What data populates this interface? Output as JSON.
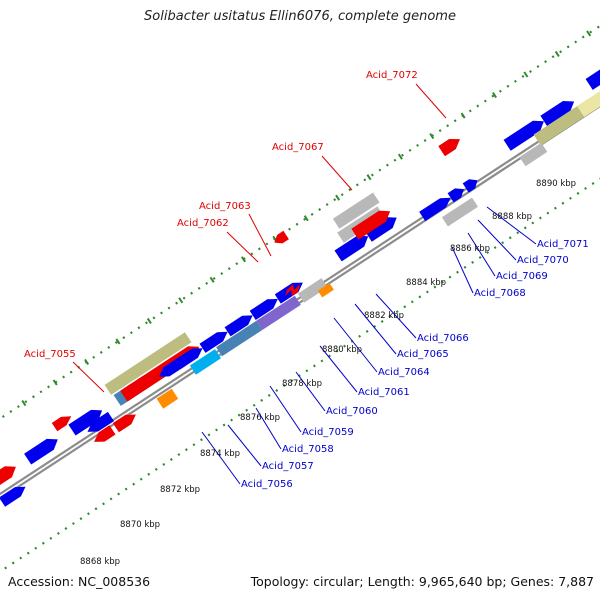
{
  "title": "Solibacter usitatus Ellin6076, complete genome",
  "footer": {
    "accession": "Accession: NC_008536",
    "info": "Topology: circular; Length: 9,965,640 bp; Genes: 7,887"
  },
  "colors": {
    "backbone": "#8c8c8c",
    "ruler_dots": "#2e8b2e",
    "forward_label": "#e00000",
    "reverse_label": "#0000cc",
    "blue_gene": "#0000ee",
    "red_gene": "#ee0000",
    "grey_gene": "#b8b8b8",
    "khaki_gene": "#bdbd80",
    "steelblue_gene": "#4682b4",
    "cyan_gene": "#00b0ee",
    "purple_gene": "#8066cc",
    "orange_gene": "#ff8c00",
    "paleyellow_gene": "#ece6a4"
  },
  "ruler_labels": [
    "8868 kbp",
    "8870 kbp",
    "8872 kbp",
    "8874 kbp",
    "8876 kbp",
    "8878 kbp",
    "8880 kbp",
    "8882 kbp",
    "8884 kbp",
    "8886 kbp",
    "8888 kbp",
    "8890 kbp"
  ],
  "gene_labels": [
    {
      "text": "Acid_7072",
      "strand": "forward"
    },
    {
      "text": "Acid_7067",
      "strand": "forward"
    },
    {
      "text": "Acid_7063",
      "strand": "forward"
    },
    {
      "text": "Acid_7062",
      "strand": "forward"
    },
    {
      "text": "Acid_7055",
      "strand": "forward"
    },
    {
      "text": "Acid_7071",
      "strand": "reverse"
    },
    {
      "text": "Acid_7070",
      "strand": "reverse"
    },
    {
      "text": "Acid_7069",
      "strand": "reverse"
    },
    {
      "text": "Acid_7068",
      "strand": "reverse"
    },
    {
      "text": "Acid_7066",
      "strand": "reverse"
    },
    {
      "text": "Acid_7065",
      "strand": "reverse"
    },
    {
      "text": "Acid_7064",
      "strand": "reverse"
    },
    {
      "text": "Acid_7061",
      "strand": "reverse"
    },
    {
      "text": "Acid_7060",
      "strand": "reverse"
    },
    {
      "text": "Acid_7059",
      "strand": "reverse"
    },
    {
      "text": "Acid_7058",
      "strand": "reverse"
    },
    {
      "text": "Acid_7057",
      "strand": "reverse"
    },
    {
      "text": "Acid_7056",
      "strand": "reverse"
    }
  ]
}
